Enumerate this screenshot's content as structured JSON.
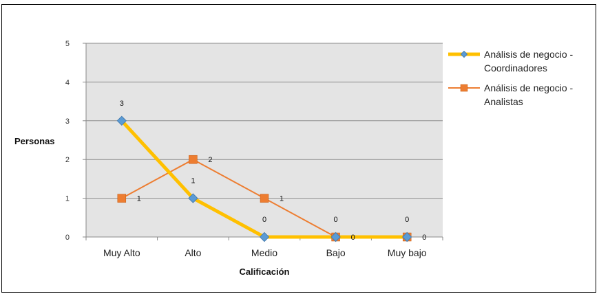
{
  "chart_data": {
    "type": "line",
    "categories": [
      "Muy Alto",
      "Alto",
      "Medio",
      "Bajo",
      "Muy bajo"
    ],
    "series": [
      {
        "name": "Análisis de negocio - Coordinadores",
        "values": [
          3,
          1,
          0,
          0,
          0
        ],
        "color": "#FFC000",
        "marker": "diamond"
      },
      {
        "name": "Análisis de negocio - Analistas",
        "values": [
          1,
          2,
          1,
          0,
          0
        ],
        "color": "#ED7D31",
        "marker": "square"
      }
    ],
    "xlabel": "Calificación",
    "ylabel": "Personas",
    "ylim": [
      0,
      5
    ],
    "yticks": [
      0,
      1,
      2,
      3,
      4,
      5
    ],
    "grid": true,
    "legend_position": "right",
    "plot_background": "#E4E4E4"
  }
}
